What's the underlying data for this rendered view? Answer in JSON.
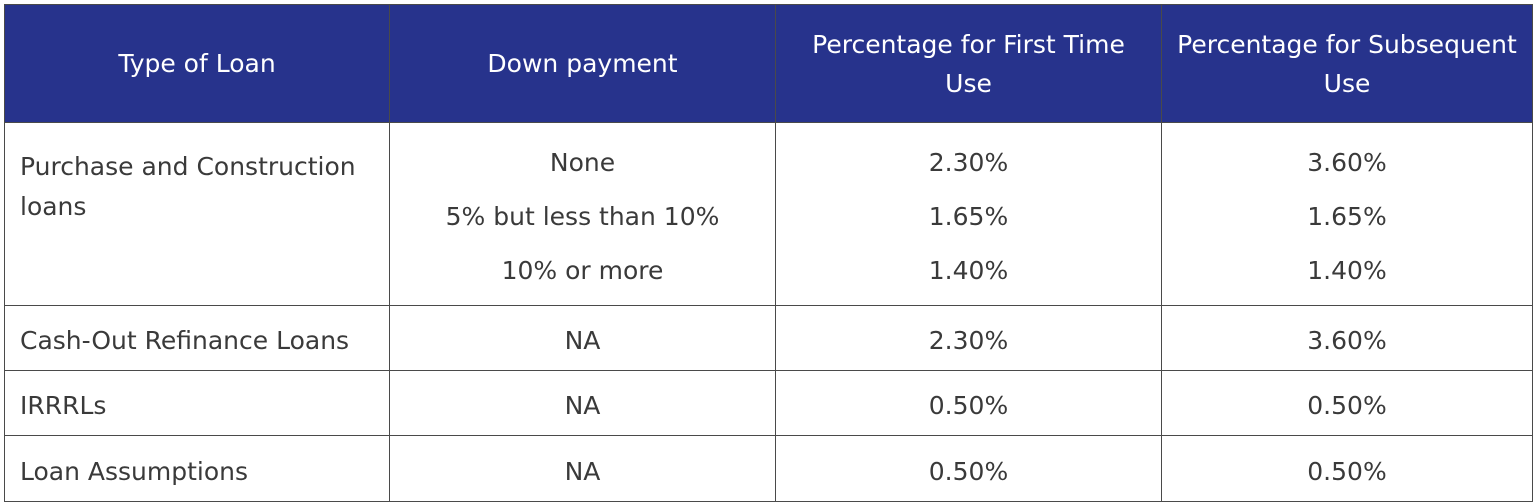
{
  "table": {
    "headers": [
      "Type of Loan",
      "Down payment",
      "Percentage for First Time Use",
      "Percentage for Subsequent Use"
    ],
    "purchase": {
      "type": "Purchase and Construction loans",
      "down_payment": [
        "None",
        "5% but less than 10%",
        "10% or more"
      ],
      "first_time": [
        "2.30%",
        "1.65%",
        "1.40%"
      ],
      "subsequent": [
        "3.60%",
        "1.65%",
        "1.40%"
      ]
    },
    "rows": [
      {
        "type": "Cash-Out Refinance Loans",
        "down_payment": "NA",
        "first_time": "2.30%",
        "subsequent": "3.60%"
      },
      {
        "type": "IRRRLs",
        "down_payment": "NA",
        "first_time": "0.50%",
        "subsequent": "0.50%"
      },
      {
        "type": "Loan Assumptions",
        "down_payment": "NA",
        "first_time": "0.50%",
        "subsequent": "0.50%"
      }
    ],
    "colors": {
      "header_bg": "#27338c",
      "header_text": "#ffffff",
      "body_text": "#3a3a3a",
      "border": "#4a4a4a"
    }
  }
}
